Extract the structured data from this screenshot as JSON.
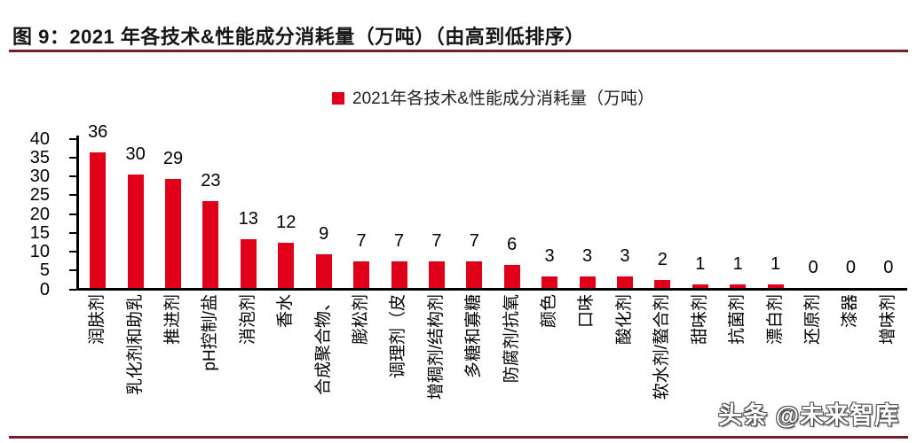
{
  "figure": {
    "title": "图 9：2021 年各技术&性能成分消耗量（万吨）（由高到低排序）",
    "rule_color": "#731d28"
  },
  "watermark": {
    "text": "头条 @未来智库"
  },
  "chart_data": {
    "type": "bar",
    "title": "",
    "legend": [
      "2021年各技术&性能成分消耗量（万吨）"
    ],
    "legend_position": "top-center",
    "legend_marker_color": "#e10019",
    "bar_color": "#e10019",
    "grid": false,
    "data_labels": true,
    "xlabel": "",
    "ylabel": "",
    "ylim": [
      0,
      40
    ],
    "yticks": [
      0,
      5,
      10,
      15,
      20,
      25,
      30,
      35,
      40
    ],
    "categories": [
      "润肤剂",
      "乳化剂和助乳",
      "推进剂",
      "pH控制/盐",
      "消泡剂",
      "香水",
      "合成聚合物、",
      "膨松剂",
      "调理剂（皮",
      "增稠剂/结构剂",
      "多糖和寡糖",
      "防腐剂/抗氧",
      "颜色",
      "口味",
      "酸化剂",
      "软水剂/螯合剂",
      "甜味剂",
      "抗菌剂",
      "漂白剂",
      "还原剂",
      "漆器",
      "增味剂"
    ],
    "values": [
      36,
      30,
      29,
      23,
      13,
      12,
      9,
      7,
      7,
      7,
      7,
      6,
      3,
      3,
      3,
      2,
      1,
      1,
      1,
      0,
      0,
      0
    ]
  }
}
